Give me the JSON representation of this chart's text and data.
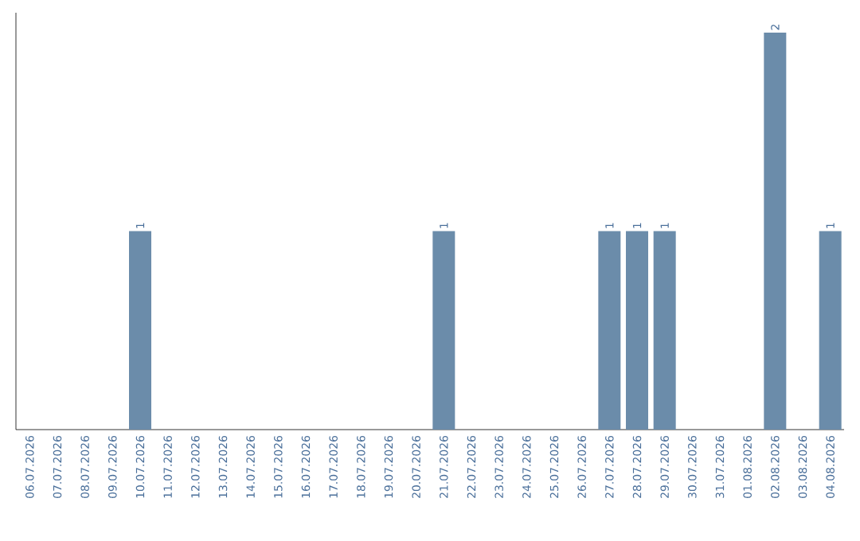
{
  "chart_data": {
    "type": "bar",
    "categories": [
      "06.07.2026",
      "07.07.2026",
      "08.07.2026",
      "09.07.2026",
      "10.07.2026",
      "11.07.2026",
      "12.07.2026",
      "13.07.2026",
      "14.07.2026",
      "15.07.2026",
      "16.07.2026",
      "17.07.2026",
      "18.07.2026",
      "19.07.2026",
      "20.07.2026",
      "21.07.2026",
      "22.07.2026",
      "23.07.2026",
      "24.07.2026",
      "25.07.2026",
      "26.07.2026",
      "27.07.2026",
      "28.07.2026",
      "29.07.2026",
      "30.07.2026",
      "31.07.2026",
      "01.08.2026",
      "02.08.2026",
      "03.08.2026",
      "04.08.2026"
    ],
    "values": [
      0,
      0,
      0,
      0,
      1,
      0,
      0,
      0,
      0,
      0,
      0,
      0,
      0,
      0,
      0,
      1,
      0,
      0,
      0,
      0,
      0,
      1,
      1,
      1,
      0,
      0,
      0,
      2,
      0,
      1
    ],
    "value_labels": [
      null,
      null,
      null,
      null,
      "1",
      null,
      null,
      null,
      null,
      null,
      null,
      null,
      null,
      null,
      null,
      "1",
      null,
      null,
      null,
      null,
      null,
      "1",
      "1",
      "1",
      null,
      null,
      null,
      "2",
      null,
      "1"
    ],
    "color": "#6b8caa",
    "ylim": [
      0,
      2.1
    ],
    "tick_labels": "x"
  }
}
